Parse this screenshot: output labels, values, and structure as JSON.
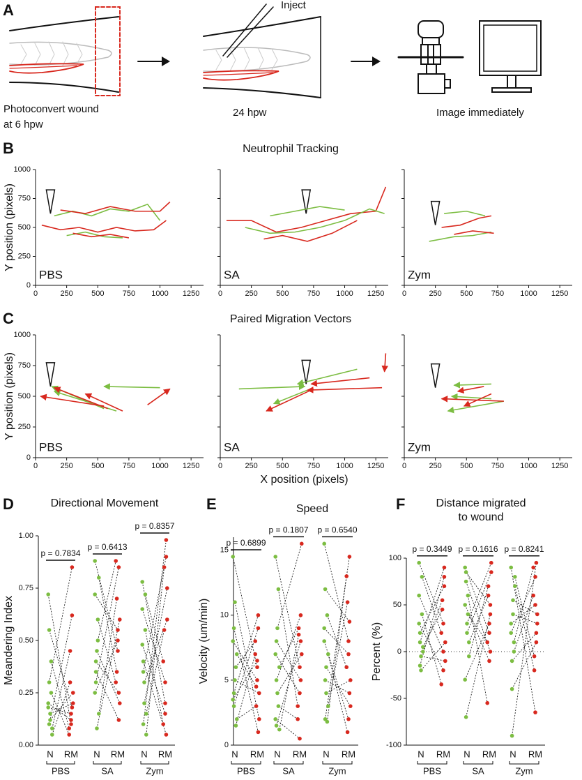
{
  "panel_labels": [
    "A",
    "B",
    "C",
    "D",
    "E",
    "F"
  ],
  "schematic": {
    "inject": "Inject",
    "step1": [
      "Photoconvert wound",
      "at 6 hpw"
    ],
    "step2": "24 hpw",
    "step3": "Image immediately"
  },
  "chart_data": [
    {
      "type": "line",
      "title": "Neutrophil Tracking",
      "ylabel": "Y position (pixels)",
      "label": "PBS",
      "xlim": [
        0,
        1350
      ],
      "xticks": [
        0,
        250,
        500,
        750,
        1000,
        1250
      ],
      "ylim": [
        0,
        1000
      ],
      "yticks": [
        0,
        250,
        500,
        750,
        1000
      ],
      "ytick_labels": true,
      "wound_marker": [
        120,
        620
      ],
      "series": [
        {
          "color": "#d8281e",
          "x": [
            50,
            200,
            350,
            500,
            650,
            800,
            950,
            1050
          ],
          "y": [
            520,
            480,
            500,
            460,
            500,
            470,
            480,
            560
          ]
        },
        {
          "color": "#7cbd42",
          "x": [
            150,
            300,
            450,
            600,
            750,
            900,
            1000
          ],
          "y": [
            600,
            640,
            600,
            660,
            640,
            700,
            560
          ]
        },
        {
          "color": "#d8281e",
          "x": [
            200,
            400,
            600,
            800,
            1000,
            1080
          ],
          "y": [
            650,
            620,
            680,
            640,
            640,
            720
          ]
        },
        {
          "color": "#7cbd42",
          "x": [
            250,
            400,
            550,
            700
          ],
          "y": [
            430,
            460,
            420,
            410
          ]
        },
        {
          "color": "#d8281e",
          "x": [
            300,
            450,
            600,
            750
          ],
          "y": [
            450,
            420,
            440,
            410
          ]
        }
      ]
    },
    {
      "type": "line",
      "label": "SA",
      "xlim": [
        0,
        1350
      ],
      "xticks": [
        0,
        250,
        500,
        750,
        1000,
        1250
      ],
      "ylim": [
        0,
        1000
      ],
      "yticks": [
        0,
        250,
        500,
        750,
        1000
      ],
      "ytick_labels": false,
      "wound_marker": [
        690,
        620
      ],
      "series": [
        {
          "color": "#d8281e",
          "x": [
            50,
            250,
            450,
            650,
            850,
            1050,
            1250,
            1330
          ],
          "y": [
            560,
            560,
            460,
            500,
            560,
            620,
            640,
            850
          ]
        },
        {
          "color": "#7cbd42",
          "x": [
            200,
            400,
            600,
            800,
            1000,
            1200,
            1320
          ],
          "y": [
            500,
            450,
            460,
            500,
            560,
            660,
            620
          ]
        },
        {
          "color": "#d8281e",
          "x": [
            350,
            500,
            700,
            900,
            1100
          ],
          "y": [
            400,
            430,
            380,
            450,
            560
          ]
        },
        {
          "color": "#7cbd42",
          "x": [
            400,
            600,
            800,
            1000
          ],
          "y": [
            600,
            640,
            680,
            650
          ]
        }
      ]
    },
    {
      "type": "line",
      "label": "Zym",
      "xlim": [
        0,
        1350
      ],
      "xticks": [
        0,
        250,
        500,
        750,
        1000,
        1250
      ],
      "ylim": [
        0,
        1000
      ],
      "yticks": [
        0,
        250,
        500,
        750,
        1000
      ],
      "ytick_labels": false,
      "wound_marker": [
        250,
        520
      ],
      "series": [
        {
          "color": "#7cbd42",
          "x": [
            200,
            400,
            550,
            700
          ],
          "y": [
            380,
            420,
            430,
            460
          ]
        },
        {
          "color": "#d8281e",
          "x": [
            300,
            450,
            600,
            700
          ],
          "y": [
            500,
            520,
            580,
            600
          ]
        },
        {
          "color": "#7cbd42",
          "x": [
            320,
            500,
            650
          ],
          "y": [
            620,
            640,
            600
          ]
        },
        {
          "color": "#d8281e",
          "x": [
            400,
            550,
            720
          ],
          "y": [
            440,
            470,
            450
          ]
        }
      ]
    },
    {
      "type": "vector",
      "title": "Paired Migration Vectors",
      "ylabel": "Y position (pixels)",
      "label": "PBS",
      "xlim": [
        0,
        1350
      ],
      "xticks": [
        0,
        250,
        500,
        750,
        1000,
        1250
      ],
      "ylim": [
        0,
        1000
      ],
      "yticks": [
        0,
        250,
        500,
        750,
        1000
      ],
      "ytick_labels": true,
      "wound_marker": [
        120,
        580
      ],
      "series": [
        {
          "color": "#7cbd42",
          "x": [
            1000,
            550,
            650
          ],
          "y": [
            570,
            400,
            380
          ],
          "x_end": [
            550,
            130,
            150
          ],
          "y_end": [
            580,
            580,
            540
          ]
        },
        {
          "color": "#d8281e",
          "x": [
            550,
            580,
            900,
            700
          ],
          "y": [
            420,
            400,
            430,
            380
          ],
          "x_end": [
            40,
            150,
            1080,
            400
          ],
          "y_end": [
            500,
            570,
            560,
            520
          ]
        }
      ]
    },
    {
      "type": "vector",
      "label": "SA",
      "xlabel": "X position (pixels)",
      "xlim": [
        0,
        1350
      ],
      "xticks": [
        0,
        250,
        500,
        750,
        1000,
        1250
      ],
      "ylim": [
        0,
        1000
      ],
      "yticks": [
        0,
        250,
        500,
        750,
        1000
      ],
      "ytick_labels": false,
      "wound_marker": [
        690,
        600
      ],
      "series": [
        {
          "color": "#7cbd42",
          "x": [
            150,
            1100,
            700
          ],
          "y": [
            560,
            720,
            550
          ],
          "x_end": [
            680,
            620,
            430
          ],
          "y_end": [
            580,
            600,
            440
          ]
        },
        {
          "color": "#d8281e",
          "x": [
            1330,
            1300,
            750,
            1200
          ],
          "y": [
            850,
            570,
            560,
            650
          ],
          "x_end": [
            1320,
            700,
            370,
            730
          ],
          "y_end": [
            700,
            550,
            380,
            600
          ]
        }
      ]
    },
    {
      "type": "vector",
      "label": "Zym",
      "xlim": [
        0,
        1350
      ],
      "xticks": [
        0,
        250,
        500,
        750,
        1000,
        1250
      ],
      "ylim": [
        0,
        1000
      ],
      "yticks": [
        0,
        250,
        500,
        750,
        1000
      ],
      "ytick_labels": false,
      "wound_marker": [
        250,
        570
      ],
      "series": [
        {
          "color": "#7cbd42",
          "x": [
            700,
            800,
            700
          ],
          "y": [
            600,
            460,
            480
          ],
          "x_end": [
            400,
            350,
            380
          ],
          "y_end": [
            590,
            380,
            500
          ]
        },
        {
          "color": "#d8281e",
          "x": [
            640,
            800,
            700
          ],
          "y": [
            580,
            460,
            520
          ],
          "x_end": [
            430,
            300,
            480
          ],
          "y_end": [
            540,
            480,
            420
          ]
        }
      ]
    },
    {
      "type": "paired",
      "title": [
        "Directional Movement"
      ],
      "ylabel": "Meandering Index",
      "categories": [
        "N",
        "RM"
      ],
      "n_color": "#7cbd42",
      "rm_color": "#d8281e",
      "ylim": [
        0,
        1
      ],
      "yticks": [
        {
          "value": 0,
          "label": "0.00"
        },
        {
          "value": 0.25,
          "label": "0.25"
        },
        {
          "value": 0.5,
          "label": "0.50"
        },
        {
          "value": 0.75,
          "label": "0.75"
        },
        {
          "value": 1,
          "label": "1.00"
        }
      ],
      "groups": [
        {
          "name": "PBS",
          "p_label": "p = 0.7834",
          "n": [
            0.72,
            0.1,
            0.15,
            0.25,
            0.05,
            0.18,
            0.3,
            0.12,
            0.4,
            0.08,
            0.2,
            0.55
          ],
          "rm": [
            0.1,
            0.62,
            0.2,
            0.05,
            0.3,
            0.15,
            0.85,
            0.25,
            0.08,
            0.45,
            0.12,
            0.18
          ]
        },
        {
          "name": "SA",
          "p_label": "p = 0.6413",
          "n": [
            0.88,
            0.3,
            0.45,
            0.6,
            0.15,
            0.72,
            0.35,
            0.08,
            0.5,
            0.8,
            0.25,
            0.4
          ],
          "rm": [
            0.45,
            0.85,
            0.2,
            0.3,
            0.7,
            0.55,
            0.12,
            0.6,
            0.88,
            0.35,
            0.5,
            0.25
          ]
        },
        {
          "name": "Zym",
          "p_label": "p = 0.8357",
          "n": [
            0.78,
            0.1,
            0.3,
            0.55,
            0.05,
            0.65,
            0.4,
            0.2,
            0.72,
            0.15,
            0.48,
            0.35
          ],
          "rm": [
            0.2,
            0.98,
            0.6,
            0.1,
            0.85,
            0.3,
            0.05,
            0.75,
            0.4,
            0.55,
            0.15,
            0.9
          ]
        }
      ]
    },
    {
      "type": "paired",
      "title": [
        "Speed"
      ],
      "ylabel": "Velocity (um/min)",
      "categories": [
        "N",
        "RM"
      ],
      "n_color": "#7cbd42",
      "rm_color": "#d8281e",
      "ylim": [
        0,
        16
      ],
      "yticks": [
        0,
        5,
        10,
        15
      ],
      "groups": [
        {
          "name": "PBS",
          "p_label": "p = 0.6899",
          "n": [
            14.5,
            3,
            5,
            6,
            2,
            8,
            4,
            11,
            1.5,
            7,
            3.5,
            9
          ],
          "rm": [
            6,
            9,
            4,
            8,
            3,
            5,
            10,
            2,
            7,
            4.5,
            6.5,
            1
          ]
        },
        {
          "name": "SA",
          "p_label": "p = 0.1807",
          "n": [
            14.5,
            1.5,
            9,
            3,
            6,
            2,
            8,
            4,
            12,
            1.2,
            7,
            5
          ],
          "rm": [
            6,
            8,
            15.5,
            2,
            9,
            0.5,
            5,
            7,
            3,
            8.5,
            4,
            10
          ]
        },
        {
          "name": "Zym",
          "p_label": "p = 0.6540",
          "n": [
            15.5,
            2,
            6,
            10,
            3,
            8,
            12,
            4,
            1.8,
            7,
            9,
            5
          ],
          "rm": [
            8,
            14.5,
            3,
            6,
            11,
            2,
            9.5,
            5,
            13,
            1,
            7,
            4
          ]
        }
      ]
    },
    {
      "type": "paired",
      "title": [
        "Distance migrated",
        "to wound"
      ],
      "ylabel": "Percent (%)",
      "categories": [
        "N",
        "RM"
      ],
      "n_color": "#7cbd42",
      "rm_color": "#d8281e",
      "zero_line": true,
      "ylim": [
        -100,
        100
      ],
      "yticks": [
        -100,
        -50,
        0,
        50,
        100
      ],
      "groups": [
        {
          "name": "PBS",
          "p_label": "p = 0.3449",
          "n": [
            95,
            10,
            -20,
            40,
            0,
            60,
            20,
            -5,
            80,
            5,
            30,
            -15
          ],
          "rm": [
            30,
            90,
            10,
            -35,
            55,
            0,
            70,
            -10,
            20,
            45,
            -20,
            80
          ]
        },
        {
          "name": "SA",
          "p_label": "p = 0.1616",
          "n": [
            90,
            -70,
            30,
            60,
            10,
            -30,
            75,
            20,
            40,
            -5,
            50,
            85
          ],
          "rm": [
            20,
            40,
            95,
            -55,
            60,
            30,
            0,
            85,
            10,
            70,
            -10,
            50
          ]
        },
        {
          "name": "Zym",
          "p_label": "p = 0.8241",
          "n": [
            90,
            -90,
            40,
            0,
            70,
            20,
            -40,
            55,
            10,
            80,
            30,
            -10
          ],
          "rm": [
            -65,
            95,
            30,
            60,
            -20,
            80,
            10,
            40,
            90,
            -5,
            50,
            20
          ]
        }
      ]
    }
  ]
}
